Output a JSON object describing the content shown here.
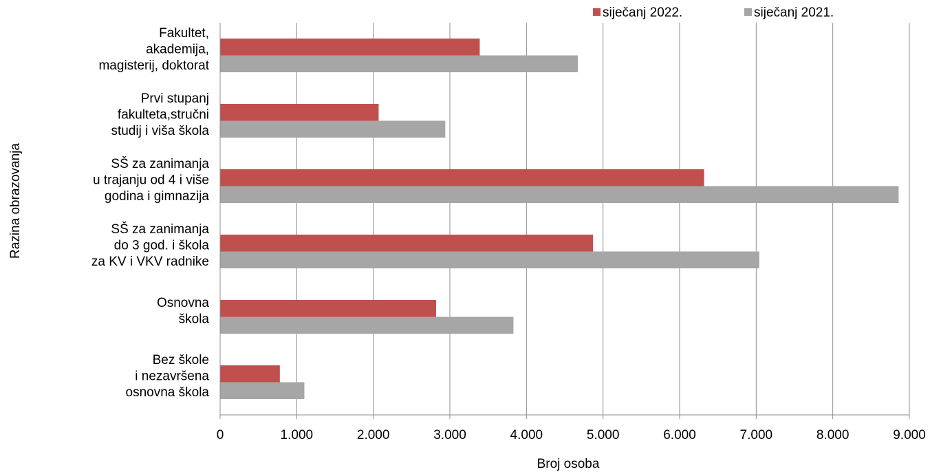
{
  "chart_data": {
    "type": "bar",
    "orientation": "horizontal",
    "categories": [
      [
        "Fakultet,",
        "akademija,",
        "magisterij, doktorat"
      ],
      [
        "Prvi stupanj",
        "fakulteta,stručni",
        "studij i viša škola"
      ],
      [
        "SŠ za zanimanja",
        "u trajanju od 4 i više",
        "godina i gimnazija"
      ],
      [
        "SŠ za zanimanja",
        "do 3 god. i škola",
        "za KV i VKV radnike"
      ],
      [
        "Osnovna",
        "škola"
      ],
      [
        "Bez škole",
        "i nezavršena",
        "osnovna škola"
      ]
    ],
    "series": [
      {
        "name": "siječanj 2022.",
        "color": "#c0504d",
        "values": [
          3390,
          2070,
          6320,
          4870,
          2820,
          780
        ]
      },
      {
        "name": "siječanj 2021.",
        "color": "#a6a6a6",
        "values": [
          4670,
          2940,
          8860,
          7040,
          3830,
          1100
        ]
      }
    ],
    "xlabel": "Broj osoba",
    "ylabel": "Razina obrazovanja",
    "xlim": [
      0,
      9000
    ],
    "xticks": [
      0,
      1000,
      2000,
      3000,
      4000,
      5000,
      6000,
      7000,
      8000,
      9000
    ],
    "xtick_labels": [
      "0",
      "1.000",
      "2.000",
      "3.000",
      "4.000",
      "5.000",
      "6.000",
      "7.000",
      "8.000",
      "9.000"
    ],
    "grid": "vertical",
    "legend": "top-right"
  }
}
